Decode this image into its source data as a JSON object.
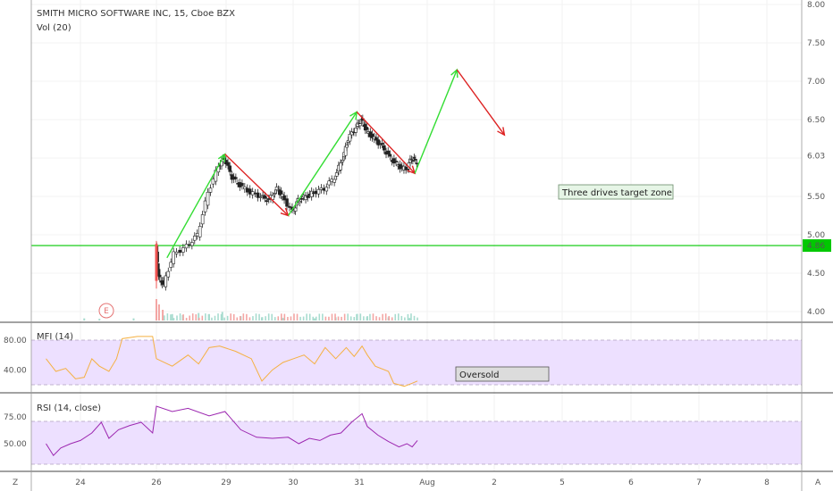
{
  "header": {
    "title": "SMITH MICRO SOFTWARE INC, 15, Cboe BZX",
    "volume_label": "Vol (20)"
  },
  "mfi_panel": {
    "label": "MFI (14)",
    "annotation": "Oversold"
  },
  "rsi_panel": {
    "label": "RSI (14, close)"
  },
  "earnings_marker": "E",
  "corner_labels": {
    "left": "Z",
    "right": "A"
  },
  "colors": {
    "up": "#26a69a",
    "down": "#ef5350",
    "candle": "#222222",
    "support_line": "#00c800",
    "arrow_up": "#33dd33",
    "arrow_down": "#dd2222",
    "mfi_line": "#f5b041",
    "rsi_line": "#9c27b0",
    "band_fill": "#ede0ff"
  },
  "chart_data": [
    {
      "type": "candlestick",
      "title": "SMITH MICRO SOFTWARE INC, 15, Cboe BZX",
      "ylim": [
        3.9,
        8.0
      ],
      "y_ticks": [
        "8.00",
        "7.50",
        "7.00",
        "6.50",
        "6.03",
        "5.50",
        "5.00",
        "4.86",
        "4.50",
        "4.00"
      ],
      "x_ticks": [
        "24",
        "26",
        "29",
        "30",
        "31",
        "Aug",
        "2",
        "5",
        "6",
        "7",
        "8"
      ],
      "last_price": 6.03,
      "support_level": 4.86,
      "price_path": [
        [
          26.0,
          4.85
        ],
        [
          26.05,
          4.45
        ],
        [
          26.15,
          4.35
        ],
        [
          26.35,
          4.75
        ],
        [
          26.6,
          4.85
        ],
        [
          26.8,
          5.0
        ],
        [
          27.0,
          5.55
        ],
        [
          27.2,
          5.9
        ],
        [
          27.3,
          6.0
        ],
        [
          27.45,
          5.75
        ],
        [
          27.6,
          5.65
        ],
        [
          27.8,
          5.55
        ],
        [
          28.0,
          5.5
        ],
        [
          28.15,
          5.45
        ],
        [
          28.3,
          5.6
        ],
        [
          28.4,
          5.5
        ],
        [
          28.6,
          5.3
        ],
        [
          28.7,
          5.45
        ],
        [
          28.85,
          5.5
        ],
        [
          29.0,
          5.55
        ],
        [
          29.2,
          5.6
        ],
        [
          29.4,
          5.75
        ],
        [
          29.55,
          6.0
        ],
        [
          29.65,
          6.25
        ],
        [
          29.8,
          6.4
        ],
        [
          29.9,
          6.5
        ],
        [
          30.0,
          6.35
        ],
        [
          30.15,
          6.25
        ],
        [
          30.3,
          6.15
        ],
        [
          30.45,
          6.0
        ],
        [
          30.6,
          5.9
        ],
        [
          30.75,
          5.85
        ],
        [
          30.85,
          6.0
        ],
        [
          30.95,
          5.95
        ]
      ],
      "annotations": {
        "text_box": "Three drives target zone",
        "arrows": [
          [
            26.2,
            4.7,
            27.3,
            6.05
          ],
          [
            27.3,
            6.05,
            28.5,
            5.25
          ],
          [
            28.5,
            5.25,
            29.8,
            6.6
          ],
          [
            29.8,
            6.6,
            30.9,
            5.8
          ],
          [
            30.9,
            5.8,
            31.7,
            7.15
          ],
          [
            31.7,
            7.15,
            32.6,
            6.3
          ]
        ]
      },
      "volume": {
        "label": "Vol (20)",
        "spike_date": 26.0,
        "bars": [
          [
            24.1,
            0.1
          ],
          [
            24.5,
            0.08
          ],
          [
            25.4,
            0.1
          ],
          [
            26.0,
            1.0
          ],
          [
            26.05,
            0.75
          ],
          [
            26.12,
            0.5
          ],
          [
            26.3,
            0.3
          ],
          [
            26.5,
            0.25
          ],
          [
            26.8,
            0.35
          ],
          [
            27.0,
            0.3
          ],
          [
            27.25,
            0.4
          ],
          [
            27.6,
            0.2
          ],
          [
            28.0,
            0.15
          ],
          [
            28.4,
            0.12
          ],
          [
            29.0,
            0.1
          ],
          [
            29.4,
            0.15
          ],
          [
            29.8,
            0.3
          ],
          [
            30.0,
            0.2
          ],
          [
            30.4,
            0.15
          ],
          [
            30.8,
            0.12
          ]
        ]
      }
    },
    {
      "type": "line",
      "title": "MFI (14)",
      "ylim": [
        0,
        100
      ],
      "y_ticks": [
        "80.00",
        "40.00"
      ],
      "band": [
        20,
        80
      ],
      "annotation": "Oversold",
      "series": [
        {
          "points": [
            [
              23.3,
              55
            ],
            [
              23.5,
              38
            ],
            [
              23.7,
              42
            ],
            [
              23.9,
              28
            ],
            [
              24.1,
              30
            ],
            [
              24.3,
              55
            ],
            [
              24.5,
              45
            ],
            [
              24.75,
              38
            ],
            [
              24.95,
              55
            ],
            [
              25.1,
              82
            ],
            [
              25.5,
              85
            ],
            [
              25.9,
              85
            ],
            [
              26.0,
              55
            ],
            [
              26.3,
              45
            ],
            [
              26.6,
              60
            ],
            [
              26.8,
              48
            ],
            [
              27.0,
              70
            ],
            [
              27.2,
              72
            ],
            [
              27.5,
              65
            ],
            [
              27.8,
              55
            ],
            [
              28.0,
              25
            ],
            [
              28.2,
              40
            ],
            [
              28.4,
              50
            ],
            [
              28.6,
              55
            ],
            [
              28.8,
              60
            ],
            [
              29.0,
              48
            ],
            [
              29.2,
              70
            ],
            [
              29.4,
              55
            ],
            [
              29.6,
              70
            ],
            [
              29.75,
              58
            ],
            [
              29.9,
              72
            ],
            [
              30.0,
              60
            ],
            [
              30.15,
              45
            ],
            [
              30.4,
              38
            ],
            [
              30.5,
              22
            ],
            [
              30.7,
              18
            ],
            [
              30.85,
              22
            ],
            [
              30.95,
              25
            ]
          ]
        }
      ]
    },
    {
      "type": "line",
      "title": "RSI (14, close)",
      "ylim": [
        30,
        90
      ],
      "y_ticks": [
        "75.00",
        "50.00"
      ],
      "band": [
        30,
        70
      ],
      "series": [
        {
          "points": [
            [
              23.3,
              50
            ],
            [
              23.45,
              39
            ],
            [
              23.6,
              46
            ],
            [
              23.8,
              50
            ],
            [
              24.0,
              53
            ],
            [
              24.3,
              60
            ],
            [
              24.55,
              70
            ],
            [
              24.75,
              55
            ],
            [
              25.0,
              63
            ],
            [
              25.3,
              67
            ],
            [
              25.6,
              70
            ],
            [
              25.9,
              60
            ],
            [
              26.0,
              85
            ],
            [
              26.3,
              80
            ],
            [
              26.6,
              83
            ],
            [
              27.0,
              76
            ],
            [
              27.3,
              80
            ],
            [
              27.6,
              63
            ],
            [
              27.9,
              56
            ],
            [
              28.2,
              55
            ],
            [
              28.5,
              56
            ],
            [
              28.7,
              50
            ],
            [
              28.9,
              55
            ],
            [
              29.1,
              53
            ],
            [
              29.3,
              58
            ],
            [
              29.5,
              60
            ],
            [
              29.7,
              70
            ],
            [
              29.9,
              78
            ],
            [
              30.0,
              66
            ],
            [
              30.2,
              58
            ],
            [
              30.4,
              52
            ],
            [
              30.6,
              47
            ],
            [
              30.75,
              50
            ],
            [
              30.85,
              47
            ],
            [
              30.95,
              53
            ]
          ]
        }
      ]
    }
  ]
}
